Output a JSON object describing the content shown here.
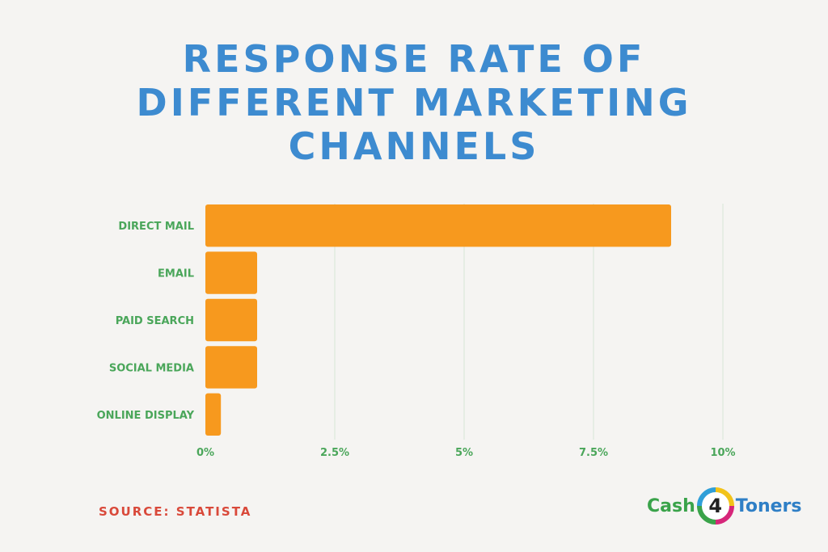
{
  "title_lines": [
    "RESPONSE RATE OF",
    "DIFFERENT MARKETING",
    "CHANNELS"
  ],
  "source": "SOURCE: STATISTA",
  "logo": {
    "part1": "Cash",
    "number": "4",
    "part2": "Toners"
  },
  "colors": {
    "bar": "#f7991e",
    "label": "#4aa65a",
    "title": "#3d8bd0",
    "grid": "#d8e6d6",
    "source": "#d9493a"
  },
  "chart_data": {
    "type": "bar",
    "orientation": "horizontal",
    "title": "RESPONSE RATE OF DIFFERENT MARKETING CHANNELS",
    "categories": [
      "DIRECT MAIL",
      "EMAIL",
      "PAID SEARCH",
      "SOCIAL MEDIA",
      "ONLINE DISPLAY"
    ],
    "values": [
      9.0,
      1.0,
      1.0,
      1.0,
      0.3
    ],
    "unit": "%",
    "xlim": [
      0,
      10
    ],
    "xticks": [
      0,
      2.5,
      5,
      7.5,
      10
    ],
    "xtick_labels": [
      "0%",
      "2.5%",
      "5%",
      "7.5%",
      "10%"
    ],
    "grid": true,
    "legend": "none"
  }
}
